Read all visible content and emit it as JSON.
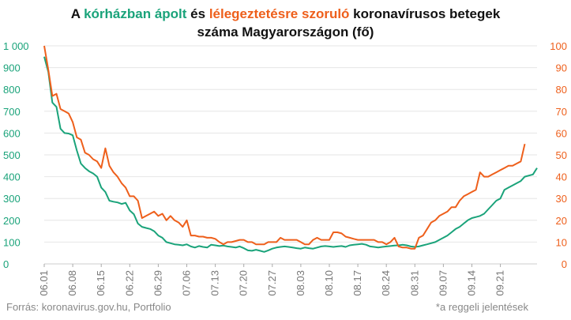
{
  "title": {
    "part1": "A ",
    "green": "kórházban ápolt",
    "part2": " és ",
    "orange": "lélegeztetésre szoruló",
    "part3": " koronavírusos betegek",
    "line2": "száma Magyarországon  (fő)"
  },
  "footer": {
    "source": "Forrás: koronavirus.gov.hu, Portfolio",
    "note": "*a reggeli jelentések"
  },
  "colors": {
    "hospital": "#1aa37a",
    "ventilator": "#ee5f1b",
    "grid": "#e6e6e6"
  },
  "chart_data": {
    "type": "line",
    "x_start": "2020-06-01",
    "x_ticks": [
      "06.01",
      "06.08",
      "06.15",
      "06.22",
      "06.29",
      "07.06",
      "07.13",
      "07.20",
      "07.27",
      "08.03",
      "08.10",
      "08.17",
      "08.24",
      "08.31",
      "09.07",
      "09.14",
      "09.21"
    ],
    "left_axis": {
      "ticks": [
        "0",
        "100",
        "200",
        "300",
        "400",
        "500",
        "600",
        "700",
        "800",
        "900",
        "1 000"
      ],
      "ylim": [
        0,
        1000
      ]
    },
    "right_axis": {
      "ticks": [
        "0",
        "10",
        "20",
        "30",
        "40",
        "50",
        "60",
        "70",
        "80",
        "90",
        "100"
      ],
      "ylim": [
        0,
        100
      ]
    },
    "series": [
      {
        "name": "kórházban ápolt",
        "axis": "left",
        "values": [
          950,
          880,
          740,
          720,
          620,
          600,
          598,
          590,
          520,
          460,
          440,
          425,
          415,
          400,
          350,
          330,
          290,
          285,
          282,
          275,
          280,
          245,
          228,
          185,
          170,
          165,
          160,
          150,
          130,
          120,
          100,
          95,
          90,
          88,
          85,
          90,
          80,
          75,
          82,
          78,
          75,
          88,
          85,
          82,
          84,
          80,
          78,
          75,
          80,
          72,
          62,
          60,
          65,
          60,
          55,
          62,
          70,
          75,
          78,
          80,
          78,
          75,
          72,
          70,
          75,
          72,
          70,
          75,
          80,
          82,
          80,
          78,
          80,
          82,
          78,
          85,
          88,
          90,
          92,
          88,
          80,
          78,
          75,
          78,
          80,
          82,
          84,
          85,
          88,
          85,
          80,
          78,
          80,
          85,
          90,
          95,
          100,
          110,
          120,
          130,
          145,
          160,
          170,
          185,
          200,
          210,
          215,
          220,
          230,
          250,
          270,
          290,
          300,
          340,
          350,
          360,
          370,
          380,
          400,
          405,
          410,
          440
        ]
      },
      {
        "name": "lélegeztetésre szoruló",
        "axis": "right",
        "values": [
          100,
          89,
          77,
          78,
          71,
          70,
          69,
          65,
          58,
          57,
          51,
          50,
          48,
          47,
          44,
          53,
          45,
          42,
          40,
          37,
          35,
          31,
          31,
          29,
          21,
          22,
          23,
          24,
          22,
          23,
          20,
          22,
          20,
          19,
          17,
          20,
          13,
          13,
          12.5,
          12.5,
          12,
          12,
          11.5,
          10,
          9,
          10,
          10,
          10.5,
          11,
          11,
          10,
          10,
          9,
          9,
          9,
          10,
          10,
          10,
          12,
          11,
          11,
          11,
          11,
          10,
          9,
          9,
          11,
          12,
          11,
          11,
          11,
          14.5,
          14.5,
          14,
          12.5,
          12,
          11.5,
          11,
          11,
          11,
          11,
          11,
          10,
          10,
          9,
          10,
          12,
          8,
          7.5,
          7.5,
          7,
          7,
          12,
          13,
          16,
          19,
          20,
          22,
          23,
          24,
          26,
          26,
          29,
          31,
          32,
          33,
          34,
          42,
          40,
          40,
          41,
          42,
          43,
          44,
          45,
          45,
          46,
          47,
          55
        ]
      }
    ]
  }
}
